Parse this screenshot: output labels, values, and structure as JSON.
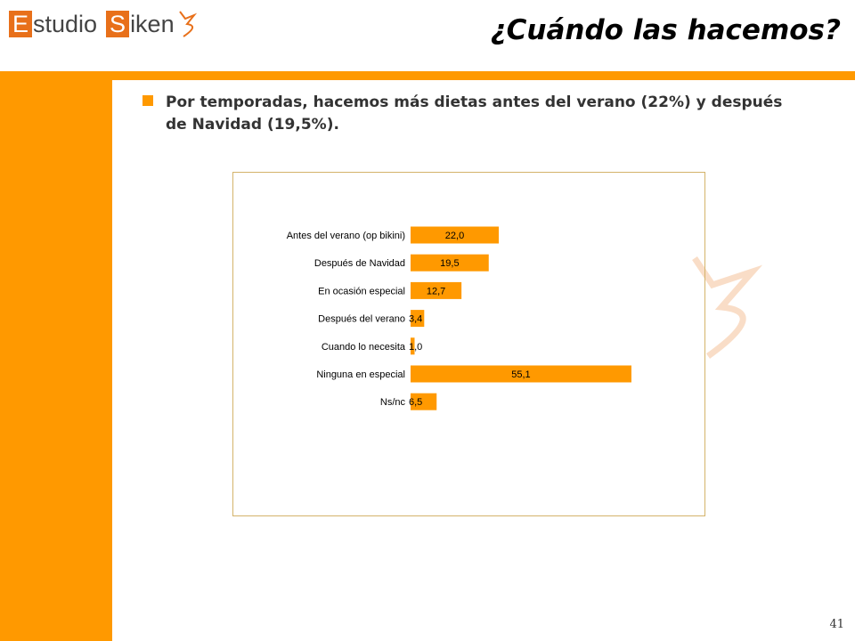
{
  "header": {
    "logo_letter_1": "E",
    "logo_text_1": "studio",
    "logo_letter_2": "S",
    "logo_text_2": "iken",
    "title": "¿Cuándo las hacemos?"
  },
  "bullet": {
    "text": "Por temporadas, hacemos más dietas antes del verano (22%) y después de Navidad (19,5%)."
  },
  "colors": {
    "accent": "#ff9900",
    "bar": "#ff9900",
    "logo_box": "#e8701a"
  },
  "chart_data": {
    "type": "bar",
    "orientation": "horizontal",
    "categories": [
      "Antes del verano (op bikini)",
      "Después de Navidad",
      "En ocasión especial",
      "Después del verano",
      "Cuando lo necesita",
      "Ninguna en especial",
      "Ns/nc"
    ],
    "values": [
      22.0,
      19.5,
      12.7,
      3.4,
      1.0,
      55.1,
      6.5
    ],
    "labels": [
      "22,0",
      "19,5",
      "12,7",
      "3,4",
      "1,0",
      "55,1",
      "6,5"
    ],
    "xlim": [
      0,
      60
    ],
    "grid": false,
    "legend": "none"
  },
  "footer": {
    "page_number": "41"
  }
}
